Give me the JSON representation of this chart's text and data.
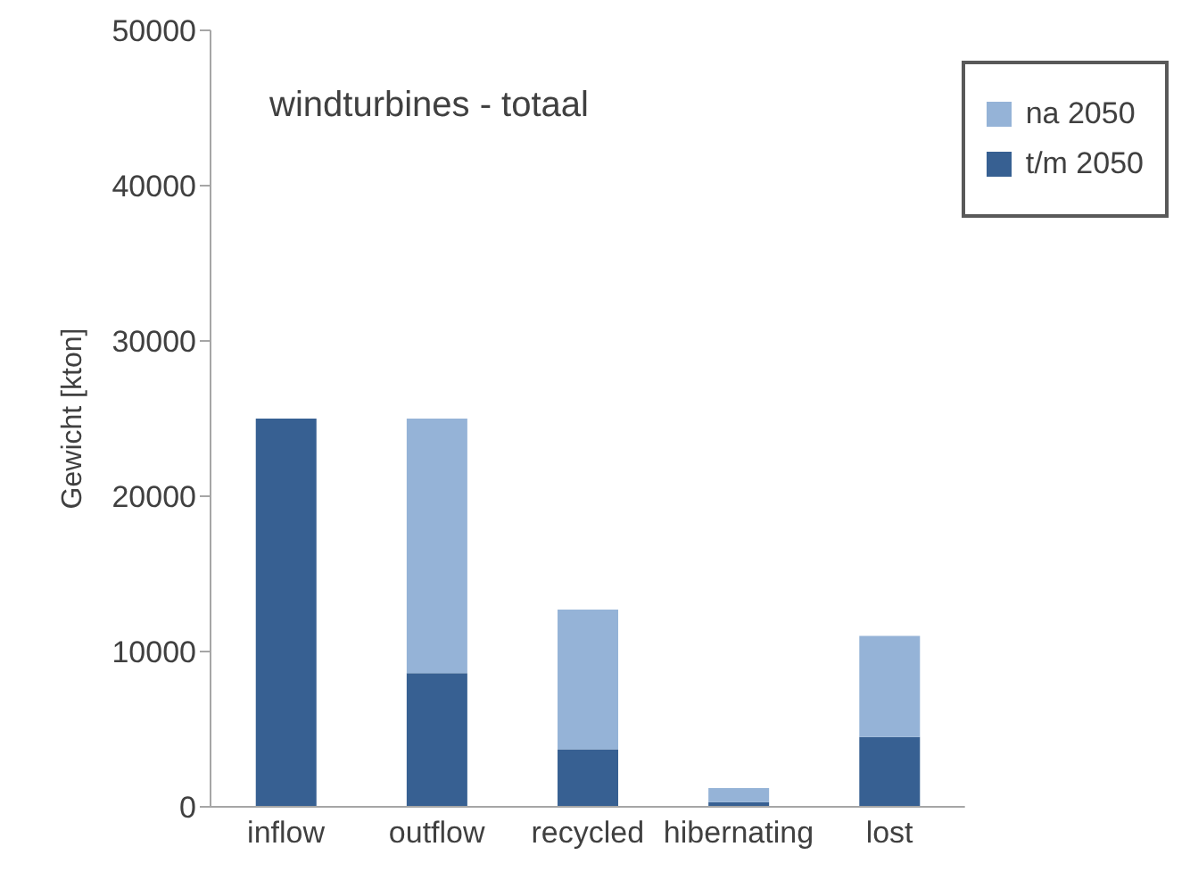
{
  "chart_data": {
    "type": "bar",
    "title": "windturbines - totaal",
    "ylabel": "Gewicht [kton]",
    "categories": [
      "inflow",
      "outflow",
      "recycled",
      "hibernating",
      "lost"
    ],
    "series": [
      {
        "name": "t/m 2050",
        "color": "#376092",
        "values": [
          25000,
          8600,
          3700,
          300,
          4500
        ]
      },
      {
        "name": "na 2050",
        "color": "#95b3d7",
        "values": [
          0,
          16400,
          9000,
          900,
          6500
        ]
      }
    ],
    "stacked": true,
    "ylim": [
      0,
      50000
    ],
    "yticks": [
      0,
      10000,
      20000,
      30000,
      40000,
      50000
    ],
    "grid": false,
    "legend": "top right"
  }
}
